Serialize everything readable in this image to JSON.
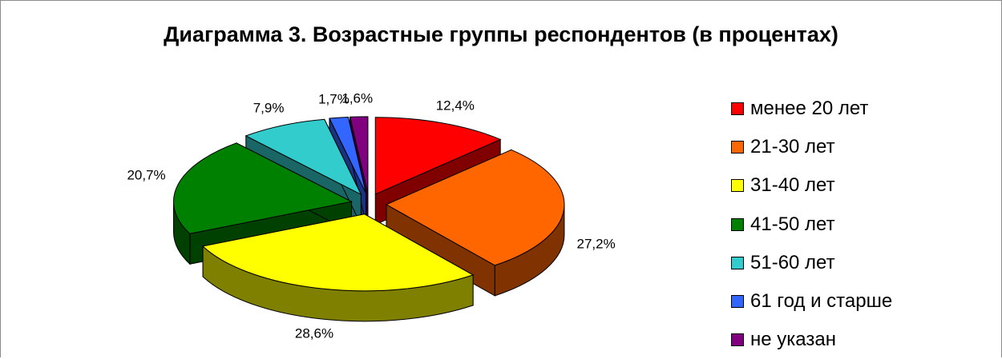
{
  "chart_data": {
    "type": "pie",
    "title": "Диаграмма 3. Возрастные группы респондентов (в процентах)",
    "categories": [
      "менее 20 лет",
      "21-30 лет",
      "31-40 лет",
      "41-50 лет",
      "51-60 лет",
      "61 год и старше",
      "не указан"
    ],
    "values": [
      12.4,
      27.2,
      28.6,
      20.7,
      7.9,
      1.7,
      1.6
    ],
    "data_labels": [
      "12,4%",
      "27,2%",
      "28,6%",
      "20,7%",
      "7,9%",
      "1,7%",
      "1,6%"
    ],
    "colors": [
      "#ff0000",
      "#ff6600",
      "#ffff00",
      "#008000",
      "#33cccc",
      "#3366ff",
      "#800080"
    ],
    "exploded": true,
    "three_d": true,
    "legend_position": "right"
  }
}
